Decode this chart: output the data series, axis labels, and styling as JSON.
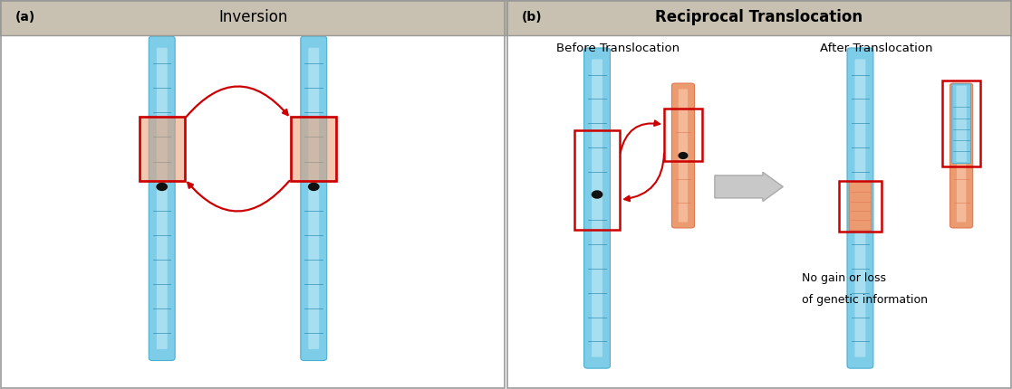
{
  "fig_width": 11.17,
  "fig_height": 4.3,
  "bg_color": "#ffffff",
  "header_color": "#c8c0b0",
  "border_color": "#888888",
  "panel_a_title": "Inversion",
  "panel_b_title": "Reciprocal Translocation",
  "blue_dark": "#4ab0d0",
  "blue_mid": "#7dcce8",
  "blue_light": "#c0eaf5",
  "blue_band": "#2a8aaf",
  "orange_dark": "#e07850",
  "orange_mid": "#ec9a70",
  "orange_light": "#f8cbb0",
  "centromere_color": "#111111",
  "red_box": "#cc0000",
  "red_arrow": "#cc0000",
  "label_a": "(a)",
  "label_b": "(b)",
  "before_text": "Before Translocation",
  "after_text": "After Translocation",
  "note_line1": "No gain or loss",
  "note_line2": "of genetic information"
}
